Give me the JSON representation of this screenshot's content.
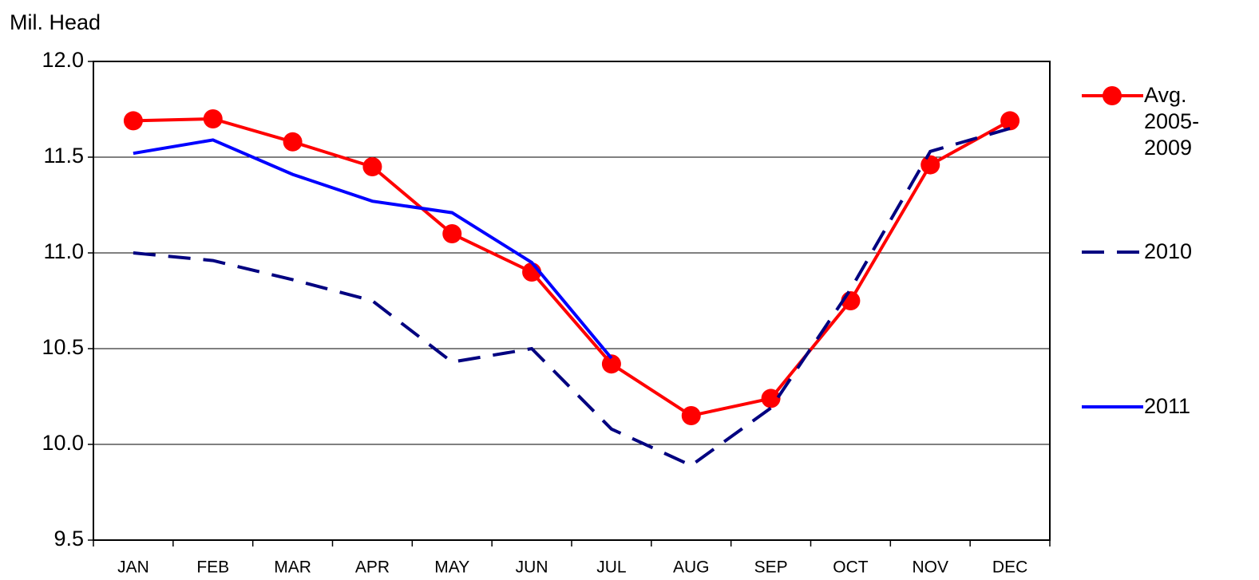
{
  "chart_data": {
    "type": "line",
    "y_label": "Mil. Head",
    "categories": [
      "JAN",
      "FEB",
      "MAR",
      "APR",
      "MAY",
      "JUN",
      "JUL",
      "AUG",
      "SEP",
      "OCT",
      "NOV",
      "DEC"
    ],
    "series": [
      {
        "name": "Avg. 2005-2009",
        "color": "#ff0000",
        "style": "solid-marker",
        "values": [
          11.69,
          11.7,
          11.58,
          11.45,
          11.1,
          10.9,
          10.42,
          10.15,
          10.24,
          10.75,
          11.46,
          11.69
        ]
      },
      {
        "name": "2010",
        "color": "#000080",
        "style": "dashed",
        "values": [
          11.0,
          10.96,
          10.86,
          10.75,
          10.43,
          10.5,
          10.08,
          9.89,
          10.19,
          10.81,
          11.53,
          11.65
        ]
      },
      {
        "name": "2011",
        "color": "#0000ff",
        "style": "solid",
        "values": [
          11.52,
          11.59,
          11.41,
          11.27,
          11.21,
          10.95,
          10.45,
          null,
          null,
          null,
          null,
          null
        ]
      }
    ],
    "ylim": [
      9.5,
      12
    ],
    "yticks": [
      9.5,
      {
        "value": 10,
        "label": "10.0"
      },
      10.5,
      {
        "value": 11,
        "label": "11.0"
      },
      11.5,
      {
        "value": 12,
        "label": "12.0"
      }
    ],
    "grid": true,
    "legend": "right"
  }
}
